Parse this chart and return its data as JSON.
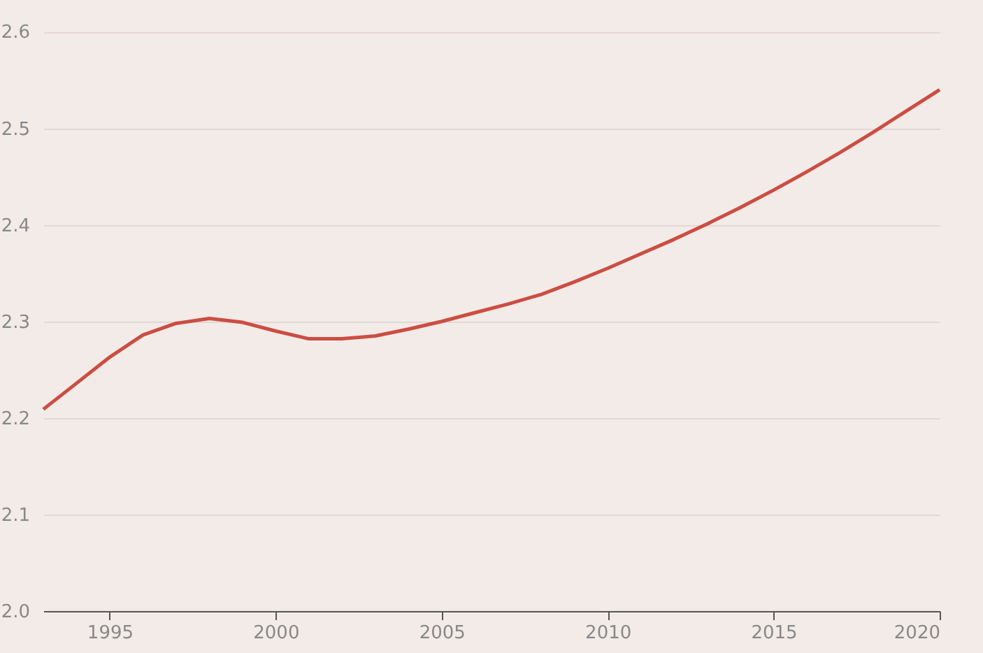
{
  "chart_data": {
    "type": "line",
    "x": [
      1993,
      1994,
      1995,
      1996,
      1997,
      1998,
      1999,
      2000,
      2001,
      2002,
      2003,
      2004,
      2005,
      2006,
      2007,
      2008,
      2009,
      2010,
      2011,
      2012,
      2013,
      2014,
      2015,
      2016,
      2017,
      2018,
      2019,
      2020
    ],
    "series": [
      {
        "color": "#cc4d42",
        "values": [
          2.209,
          2.236,
          2.263,
          2.286,
          2.298,
          2.303,
          2.299,
          2.29,
          2.282,
          2.282,
          2.285,
          2.292,
          2.3,
          2.309,
          2.318,
          2.328,
          2.341,
          2.355,
          2.37,
          2.385,
          2.401,
          2.418,
          2.436,
          2.455,
          2.475,
          2.496,
          2.518,
          2.54
        ]
      }
    ],
    "xlim": [
      1993,
      2020
    ],
    "xticks": [
      1995,
      2000,
      2005,
      2010,
      2015,
      2020
    ],
    "ylim": [
      2.0,
      2.63
    ],
    "yticks": [
      {
        "value": 2.0,
        "label": "2.0"
      },
      2.1,
      2.2,
      2.3,
      2.4,
      2.5,
      2.6
    ],
    "grid": "y",
    "marker": "none",
    "line_style": "solid"
  }
}
